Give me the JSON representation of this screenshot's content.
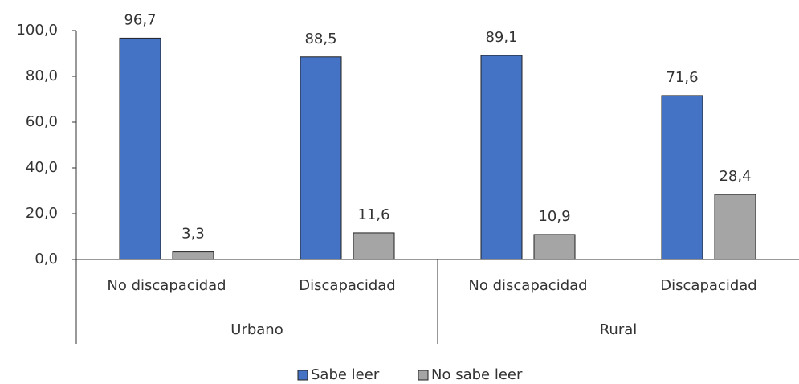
{
  "chart_data": {
    "type": "bar",
    "categories": [
      "No discapacidad",
      "Discapacidad",
      "No discapacidad",
      "Discapacidad"
    ],
    "category_groups": [
      "Urbano",
      "Rural"
    ],
    "series": [
      {
        "name": "Sabe leer",
        "color": "#4472c4",
        "values": [
          96.7,
          88.5,
          89.1,
          71.6
        ],
        "value_labels": [
          "96,7",
          "88,5",
          "89,1",
          "71,6"
        ]
      },
      {
        "name": "No sabe leer",
        "color": "#a5a5a5",
        "values": [
          3.3,
          11.6,
          10.9,
          28.4
        ],
        "value_labels": [
          "3,3",
          "11,6",
          "10,9",
          "28,4"
        ]
      }
    ],
    "ylim": [
      0,
      100
    ],
    "yticks": [
      {
        "value": 0,
        "label": "0,0"
      },
      {
        "value": 20,
        "label": "20,0"
      },
      {
        "value": 40,
        "label": "40,0"
      },
      {
        "value": 60,
        "label": "60,0"
      },
      {
        "value": 80,
        "label": "80,0"
      },
      {
        "value": 100,
        "label": "100,0"
      }
    ],
    "legend": "bottom"
  }
}
